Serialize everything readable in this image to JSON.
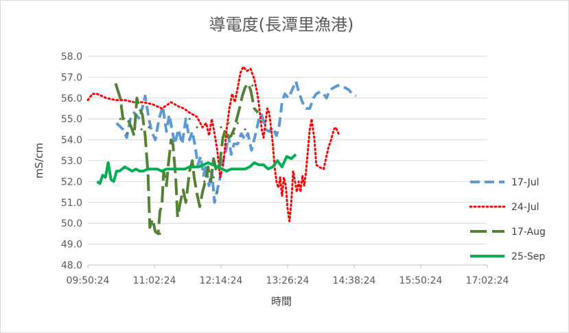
{
  "chart_data": {
    "type": "line",
    "title": "導電度(長潭里漁港)",
    "xlabel": "時間",
    "ylabel": "mS/cm",
    "x_tick_labels": [
      "09:50:24",
      "11:02:24",
      "12:14:24",
      "13:26:24",
      "14:38:24",
      "15:50:24",
      "17:02:24"
    ],
    "x_ticks_min": [
      590,
      662,
      734,
      806,
      878,
      950,
      1022
    ],
    "xlim_min": [
      590,
      1022
    ],
    "y_tick_labels": [
      "48.0",
      "49.0",
      "50.0",
      "51.0",
      "52.0",
      "53.0",
      "54.0",
      "55.0",
      "56.0",
      "57.0",
      "58.0"
    ],
    "ylim": [
      48,
      58
    ],
    "grid": "horizontal",
    "legend_position": "right",
    "series": [
      {
        "name": "17-Jul",
        "color": "#5b9bd5",
        "dash": "dash",
        "points": [
          [
            621,
            54.8
          ],
          [
            628,
            54.5
          ],
          [
            632,
            54.1
          ],
          [
            636,
            55.0
          ],
          [
            640,
            55.3
          ],
          [
            646,
            55.0
          ],
          [
            652,
            56.1
          ],
          [
            656,
            55.0
          ],
          [
            659,
            54.4
          ],
          [
            663,
            54.0
          ],
          [
            667,
            55.0
          ],
          [
            671,
            55.6
          ],
          [
            675,
            54.4
          ],
          [
            678,
            55.2
          ],
          [
            681,
            54.5
          ],
          [
            684,
            53.8
          ],
          [
            688,
            54.5
          ],
          [
            692,
            53.8
          ],
          [
            696,
            55.0
          ],
          [
            700,
            54.0
          ],
          [
            703,
            54.4
          ],
          [
            706,
            53.7
          ],
          [
            709,
            52.8
          ],
          [
            712,
            53.2
          ],
          [
            715,
            52.3
          ],
          [
            718,
            52.8
          ],
          [
            721,
            51.8
          ],
          [
            724,
            52.5
          ],
          [
            727,
            51.0
          ],
          [
            730,
            51.6
          ],
          [
            733,
            52.2
          ],
          [
            736,
            53.0
          ],
          [
            739,
            53.4
          ],
          [
            742,
            54.2
          ],
          [
            745,
            53.3
          ],
          [
            748,
            53.8
          ],
          [
            752,
            53.8
          ],
          [
            756,
            54.3
          ],
          [
            760,
            54.0
          ],
          [
            763,
            54.3
          ],
          [
            767,
            53.5
          ],
          [
            771,
            54.2
          ],
          [
            775,
            55.0
          ],
          [
            778,
            55.2
          ],
          [
            782,
            54.5
          ],
          [
            786,
            54.4
          ],
          [
            790,
            54.6
          ],
          [
            794,
            54.2
          ],
          [
            797,
            54.7
          ],
          [
            800,
            55.8
          ],
          [
            803,
            56.2
          ],
          [
            807,
            56.0
          ],
          [
            812,
            56.5
          ],
          [
            815,
            56.8
          ],
          [
            818,
            56.3
          ],
          [
            822,
            55.8
          ],
          [
            826,
            55.5
          ],
          [
            830,
            55.5
          ],
          [
            834,
            56.0
          ],
          [
            837,
            56.2
          ],
          [
            841,
            56.3
          ],
          [
            845,
            56.2
          ],
          [
            848,
            56.0
          ],
          [
            852,
            56.4
          ],
          [
            856,
            56.5
          ],
          [
            860,
            56.6
          ],
          [
            864,
            56.6
          ],
          [
            868,
            56.5
          ],
          [
            872,
            56.4
          ],
          [
            876,
            56.2
          ],
          [
            880,
            56.1
          ]
        ]
      },
      {
        "name": "24-Jul",
        "color": "#ff0000",
        "dash": "dot",
        "points": [
          [
            590,
            55.9
          ],
          [
            595,
            56.2
          ],
          [
            600,
            56.2
          ],
          [
            610,
            56.0
          ],
          [
            620,
            55.9
          ],
          [
            630,
            55.9
          ],
          [
            640,
            55.8
          ],
          [
            650,
            55.8
          ],
          [
            660,
            55.7
          ],
          [
            670,
            55.5
          ],
          [
            680,
            55.8
          ],
          [
            688,
            55.6
          ],
          [
            694,
            55.5
          ],
          [
            700,
            55.3
          ],
          [
            708,
            55.1
          ],
          [
            714,
            54.6
          ],
          [
            718,
            54.8
          ],
          [
            721,
            54.2
          ],
          [
            724,
            55.0
          ],
          [
            727,
            54.3
          ],
          [
            730,
            53.5
          ],
          [
            733,
            52.2
          ],
          [
            736,
            52.7
          ],
          [
            738,
            53.5
          ],
          [
            740,
            54.5
          ],
          [
            743,
            55.5
          ],
          [
            746,
            56.2
          ],
          [
            749,
            55.8
          ],
          [
            752,
            56.5
          ],
          [
            755,
            57.2
          ],
          [
            758,
            57.5
          ],
          [
            762,
            57.3
          ],
          [
            766,
            57.4
          ],
          [
            770,
            56.9
          ],
          [
            773,
            56.3
          ],
          [
            775,
            55.7
          ],
          [
            778,
            54.5
          ],
          [
            780,
            54.1
          ],
          [
            782,
            54.8
          ],
          [
            784,
            55.5
          ],
          [
            786,
            55.3
          ],
          [
            788,
            54.6
          ],
          [
            790,
            53.8
          ],
          [
            792,
            52.7
          ],
          [
            794,
            52.0
          ],
          [
            796,
            51.7
          ],
          [
            798,
            52.2
          ],
          [
            800,
            51.3
          ],
          [
            802,
            52.2
          ],
          [
            804,
            51.8
          ],
          [
            806,
            50.7
          ],
          [
            808,
            50.1
          ],
          [
            810,
            51.0
          ],
          [
            812,
            52.5
          ],
          [
            814,
            52.0
          ],
          [
            816,
            51.5
          ],
          [
            818,
            52.0
          ],
          [
            820,
            51.5
          ],
          [
            822,
            52.3
          ],
          [
            824,
            51.8
          ],
          [
            826,
            52.5
          ],
          [
            828,
            53.5
          ],
          [
            830,
            54.5
          ],
          [
            832,
            55.0
          ],
          [
            835,
            54.0
          ],
          [
            837,
            52.8
          ],
          [
            840,
            52.7
          ],
          [
            845,
            52.6
          ],
          [
            850,
            53.6
          ],
          [
            853,
            54.0
          ],
          [
            856,
            54.5
          ],
          [
            858,
            54.6
          ],
          [
            861,
            54.3
          ]
        ]
      },
      {
        "name": "17-Aug",
        "color": "#548235",
        "dash": "longdash",
        "points": [
          [
            620,
            56.7
          ],
          [
            625,
            56.0
          ],
          [
            628,
            55.0
          ],
          [
            631,
            55.1
          ],
          [
            634,
            54.9
          ],
          [
            637,
            54.6
          ],
          [
            640,
            54.2
          ],
          [
            643,
            56.0
          ],
          [
            646,
            55.5
          ],
          [
            649,
            55.2
          ],
          [
            652,
            54.2
          ],
          [
            655,
            52.4
          ],
          [
            657,
            49.8
          ],
          [
            660,
            50.2
          ],
          [
            663,
            49.6
          ],
          [
            666,
            49.5
          ],
          [
            668,
            50.6
          ],
          [
            670,
            50.8
          ],
          [
            672,
            52.5
          ],
          [
            675,
            51.8
          ],
          [
            677,
            52.8
          ],
          [
            680,
            54.0
          ],
          [
            682,
            53.8
          ],
          [
            685,
            52.2
          ],
          [
            687,
            50.3
          ],
          [
            690,
            51.0
          ],
          [
            693,
            51.6
          ],
          [
            696,
            51.0
          ],
          [
            700,
            52.5
          ],
          [
            703,
            53.0
          ],
          [
            705,
            52.2
          ],
          [
            708,
            51.4
          ],
          [
            711,
            50.8
          ],
          [
            714,
            51.5
          ],
          [
            717,
            52.0
          ],
          [
            720,
            52.7
          ],
          [
            723,
            52.0
          ],
          [
            726,
            53.1
          ],
          [
            729,
            52.5
          ],
          [
            732,
            52.6
          ],
          [
            736,
            54.1
          ],
          [
            739,
            54.5
          ],
          [
            742,
            54.1
          ],
          [
            745,
            54.2
          ],
          [
            748,
            54.5
          ],
          [
            751,
            55.0
          ],
          [
            754,
            55.5
          ],
          [
            757,
            56.1
          ],
          [
            760,
            56.5
          ],
          [
            763,
            56.7
          ],
          [
            766,
            56.4
          ],
          [
            770,
            55.5
          ],
          [
            774,
            55.3
          ]
        ]
      },
      {
        "name": "25-Sep",
        "color": "#00b050",
        "dash": "solid",
        "points": [
          [
            600,
            52.0
          ],
          [
            603,
            51.9
          ],
          [
            606,
            52.3
          ],
          [
            609,
            52.2
          ],
          [
            612,
            52.9
          ],
          [
            615,
            52.1
          ],
          [
            618,
            52.0
          ],
          [
            621,
            52.5
          ],
          [
            624,
            52.5
          ],
          [
            627,
            52.6
          ],
          [
            630,
            52.7
          ],
          [
            634,
            52.6
          ],
          [
            638,
            52.5
          ],
          [
            642,
            52.6
          ],
          [
            646,
            52.5
          ],
          [
            650,
            52.5
          ],
          [
            655,
            52.6
          ],
          [
            660,
            52.6
          ],
          [
            665,
            52.6
          ],
          [
            670,
            52.5
          ],
          [
            675,
            52.6
          ],
          [
            680,
            52.6
          ],
          [
            685,
            52.6
          ],
          [
            690,
            52.6
          ],
          [
            695,
            52.6
          ],
          [
            700,
            52.7
          ],
          [
            705,
            52.7
          ],
          [
            710,
            52.7
          ],
          [
            715,
            52.8
          ],
          [
            720,
            52.9
          ],
          [
            725,
            52.8
          ],
          [
            730,
            52.7
          ],
          [
            735,
            52.6
          ],
          [
            740,
            52.5
          ],
          [
            745,
            52.6
          ],
          [
            750,
            52.6
          ],
          [
            755,
            52.6
          ],
          [
            760,
            52.6
          ],
          [
            765,
            52.7
          ],
          [
            770,
            52.9
          ],
          [
            775,
            52.8
          ],
          [
            780,
            52.8
          ],
          [
            785,
            52.6
          ],
          [
            790,
            52.7
          ],
          [
            795,
            53.0
          ],
          [
            800,
            52.7
          ],
          [
            805,
            53.2
          ],
          [
            810,
            53.1
          ],
          [
            815,
            53.3
          ]
        ]
      }
    ]
  },
  "scatter_points_17_aug": [
    [
      625,
      55.0
    ],
    [
      632,
      54.3
    ],
    [
      640,
      55.8
    ],
    [
      648,
      54.5
    ],
    [
      656,
      54.6
    ],
    [
      662,
      49.7
    ],
    [
      668,
      49.5
    ],
    [
      700,
      55.0
    ],
    [
      708,
      54.6
    ],
    [
      716,
      52.0
    ],
    [
      726,
      52.2
    ],
    [
      730,
      51.5
    ],
    [
      734,
      54.6
    ],
    [
      742,
      54.8
    ],
    [
      748,
      54.3
    ],
    [
      752,
      54.8
    ],
    [
      760,
      54.5
    ],
    [
      768,
      56.6
    ]
  ]
}
